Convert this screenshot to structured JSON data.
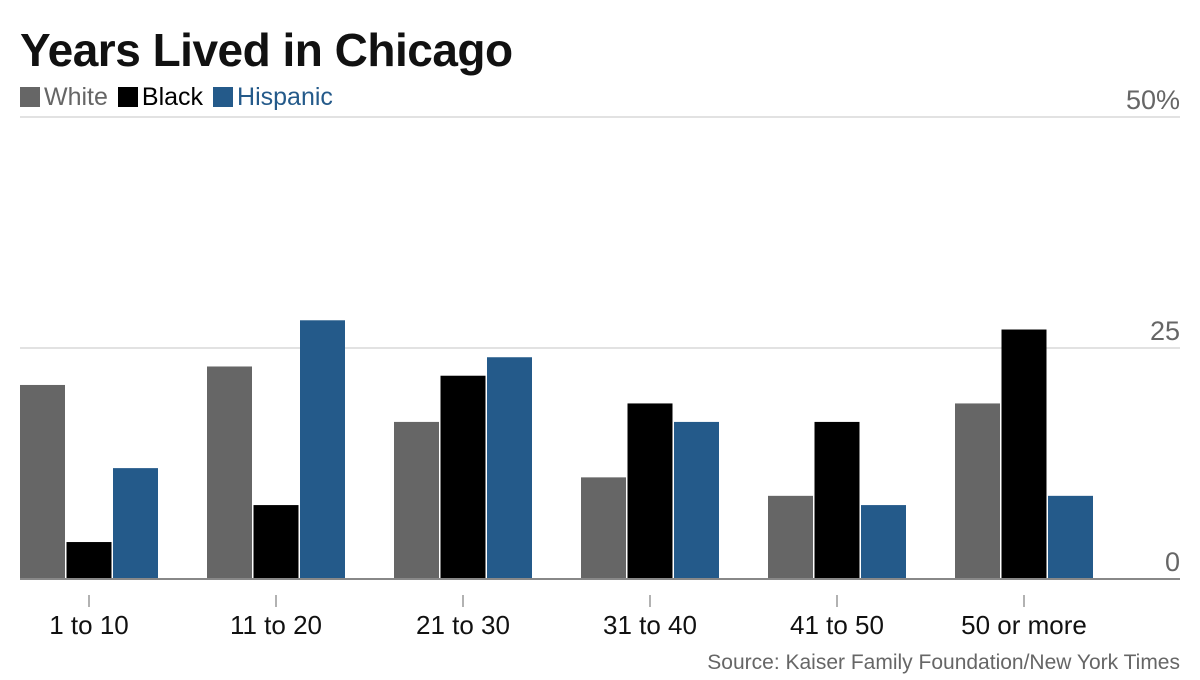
{
  "chart_data": {
    "type": "bar",
    "title": "Years Lived in Chicago",
    "categories": [
      "1 to 10",
      "11 to 20",
      "21 to 30",
      "31 to 40",
      "41 to 50",
      "50 or more"
    ],
    "series": [
      {
        "name": "White",
        "color": "#666666",
        "values": [
          21,
          23,
          17,
          11,
          9,
          19
        ]
      },
      {
        "name": "Black",
        "color": "#000000",
        "values": [
          4,
          8,
          22,
          19,
          17,
          27
        ]
      },
      {
        "name": "Hispanic",
        "color": "#245a8a",
        "values": [
          12,
          28,
          24,
          17,
          8,
          9
        ]
      }
    ],
    "y_ticks": [
      {
        "value": 0,
        "label": "0"
      },
      {
        "value": 25,
        "label": "25"
      },
      {
        "value": 50,
        "label": "50%"
      }
    ],
    "ylim": [
      0,
      50
    ],
    "grid": true,
    "legend_position": "top-left",
    "source": "Source: Kaiser Family Foundation/New York Times"
  }
}
